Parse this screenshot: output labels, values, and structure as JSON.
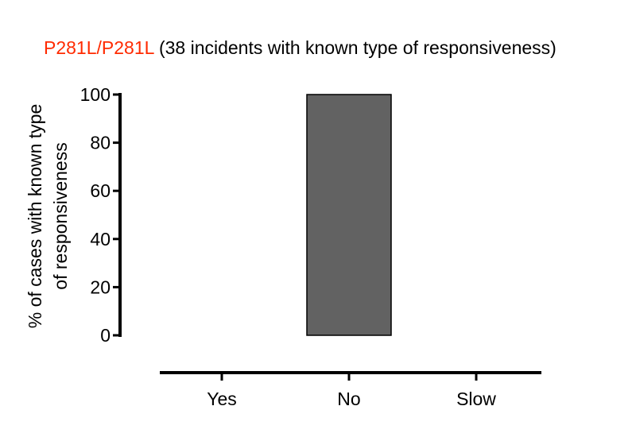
{
  "chart_data": {
    "type": "bar",
    "title_prefix": "P281L/P281L",
    "title_rest": " (38 incidents with known type of responsiveness)",
    "title_prefix_color": "#ff2a00",
    "ylabel_line1": "% of cases with  known type",
    "ylabel_line2": "of responsiveness",
    "xlabel": "",
    "categories": [
      "Yes",
      "No",
      "Slow"
    ],
    "values": [
      0,
      100,
      0
    ],
    "ylim": [
      0,
      100
    ],
    "yticks": [
      0,
      20,
      40,
      60,
      80,
      100
    ],
    "bar_color": "#626262",
    "grid": false,
    "legend": "none"
  }
}
